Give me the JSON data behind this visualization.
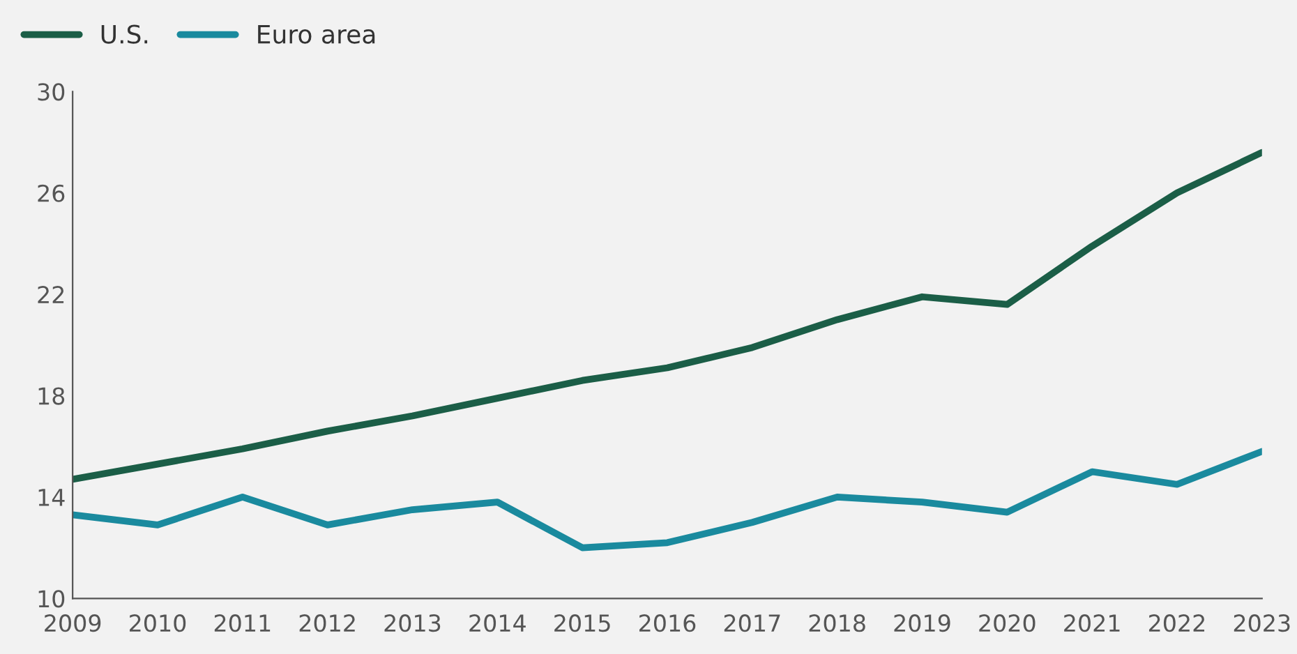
{
  "chart_data": {
    "type": "line",
    "x": [
      2009,
      2010,
      2011,
      2012,
      2013,
      2014,
      2015,
      2016,
      2017,
      2018,
      2019,
      2020,
      2021,
      2022,
      2023
    ],
    "series": [
      {
        "name": "U.S.",
        "color": "#1b5e47",
        "values": [
          14.7,
          15.3,
          15.9,
          16.6,
          17.2,
          17.9,
          18.6,
          19.1,
          19.9,
          21.0,
          21.9,
          21.6,
          23.9,
          26.0,
          27.6
        ]
      },
      {
        "name": "Euro area",
        "color": "#1a8a9e",
        "values": [
          13.3,
          12.9,
          14.0,
          12.9,
          13.5,
          13.8,
          12.0,
          12.2,
          13.0,
          14.0,
          13.8,
          13.4,
          15.0,
          14.5,
          15.8
        ]
      }
    ],
    "xlim": [
      2009,
      2023
    ],
    "xticks": [
      2009,
      2010,
      2011,
      2012,
      2013,
      2014,
      2015,
      2016,
      2017,
      2018,
      2019,
      2020,
      2021,
      2022,
      2023
    ],
    "ylim": [
      10,
      30
    ],
    "yticks": [
      10,
      14,
      18,
      22,
      26,
      30
    ],
    "grid": false,
    "legend": "top left",
    "marker": "none",
    "line_style": "solid"
  }
}
